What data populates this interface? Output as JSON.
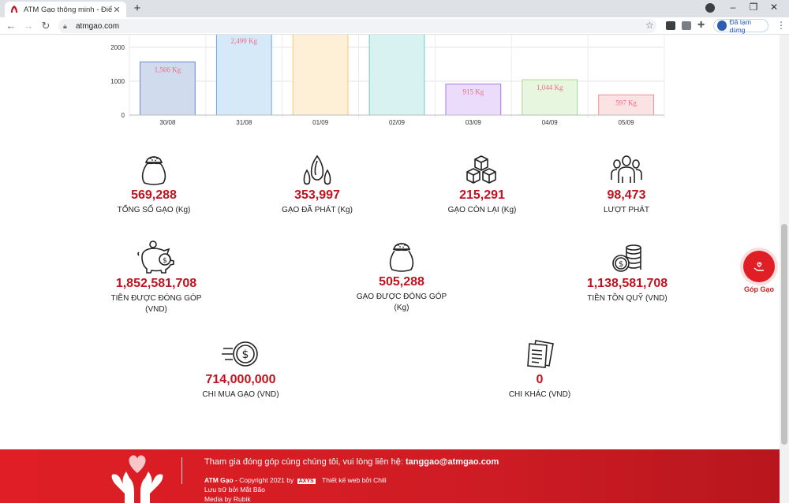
{
  "browser": {
    "tab_title": "ATM Gạo thông minh - Điểm nhận",
    "url": "atmgao.com",
    "profile_label": "Đã tạm dừng"
  },
  "chart_data": {
    "type": "bar",
    "categories": [
      "30/08",
      "31/08",
      "01/09",
      "02/09",
      "03/09",
      "04/09",
      "05/09"
    ],
    "values": [
      1566,
      2499,
      2499,
      2499,
      915,
      1044,
      597
    ],
    "data_labels": [
      "1,566 Kg",
      "2,499 Kg",
      "",
      "",
      "915 Kg",
      "1,044 Kg",
      "597 Kg"
    ],
    "y_ticks": [
      "0",
      "1000",
      "2000"
    ],
    "ylim": [
      0,
      2500
    ],
    "grid": true,
    "colors": {
      "fill": [
        "#d1dbee",
        "#d6e9f8",
        "#fdf0d7",
        "#d7f2f1",
        "#ebdcfb",
        "#e6f6df",
        "#fce3e3"
      ],
      "stroke": [
        "#6f86c9",
        "#6ca9df",
        "#f4c87a",
        "#6fcdc9",
        "#a878e8",
        "#a9d88f",
        "#f08d8d"
      ],
      "label": "#ee6a86"
    }
  },
  "stats": {
    "total_rice": {
      "value": "569,288",
      "label": "TỔNG SỐ GẠO (Kg)",
      "icon": "rice-sack-icon"
    },
    "rice_given": {
      "value": "353,997",
      "label": "GẠO ĐÃ PHÁT (Kg)",
      "icon": "rice-grain-icon"
    },
    "rice_left": {
      "value": "215,291",
      "label": "GẠO CÒN LẠI (Kg)",
      "icon": "boxes-icon"
    },
    "handouts": {
      "value": "98,473",
      "label": "LƯỢT PHÁT",
      "icon": "people-icon"
    },
    "money_donated": {
      "value": "1,852,581,708",
      "label": "TIỀN ĐƯỢC ĐÓNG GÓP",
      "label2": "(VND)",
      "icon": "piggy-bank-icon"
    },
    "rice_donated": {
      "value": "505,288",
      "label": "GẠO ĐƯỢC ĐÓNG GÓP",
      "label2": "(Kg)",
      "icon": "rice-sack-icon"
    },
    "fund_balance": {
      "value": "1,138,581,708",
      "label": "TIỀN TỒN QUỸ (VND)",
      "icon": "coin-stack-icon"
    },
    "rice_purchase": {
      "value": "714,000,000",
      "label": "CHI MUA GẠO (VND)",
      "icon": "fast-money-icon"
    },
    "other_spend": {
      "value": "0",
      "label": "CHI KHÁC (VND)",
      "icon": "documents-icon"
    }
  },
  "donate_button": {
    "label": "Góp Gạo",
    "color": "#e01e25"
  },
  "footer": {
    "contact_prefix": "Tham gia đóng góp cùng chúng tôi, vui lòng liên hệ: ",
    "contact_email": "tanggao@atmgao.com",
    "brand": "ATM Gạo",
    "copyright": " - Copyright 2021 by ",
    "axys": "AXYS",
    "web_design": "Thiết kế web bởi Chili",
    "hosting": "Lưu trữ bởi Mắt Bão",
    "media": "Media by Rubik"
  }
}
